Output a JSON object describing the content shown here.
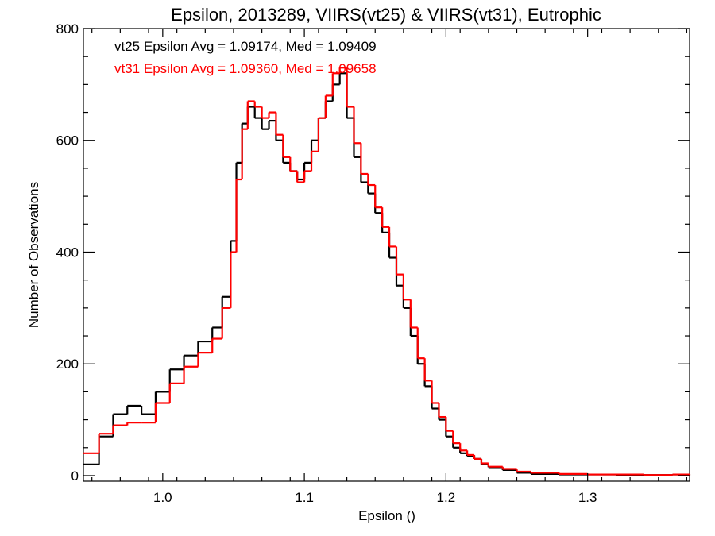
{
  "chart_data": {
    "type": "line",
    "title": "Epsilon, 2013289, VIIRS(vt25) & VIIRS(vt31), Eutrophic",
    "xlabel": "Epsilon ()",
    "ylabel": "Number of Observations",
    "xlim": [
      0.944,
      1.372
    ],
    "ylim": [
      -10,
      800
    ],
    "xticks": [
      1.0,
      1.1,
      1.2,
      1.3
    ],
    "xtick_labels": [
      "1.0",
      "1.1",
      "1.2",
      "1.3"
    ],
    "yticks": [
      0,
      200,
      400,
      600,
      800
    ],
    "ytick_labels": [
      "0",
      "200",
      "400",
      "600",
      "800"
    ],
    "grid": false,
    "legend_placement": "top-left",
    "annotations": [
      {
        "text": "vt25 Epsilon Avg = 1.09174, Med = 1.09409",
        "color": "#000000"
      },
      {
        "text": "vt31 Epsilon Avg = 1.09360, Med = 1.09658",
        "color": "#ff0000"
      }
    ],
    "series": [
      {
        "color": "#000000",
        "x": [
          0.944,
          0.955,
          0.965,
          0.975,
          0.985,
          0.995,
          1.005,
          1.015,
          1.025,
          1.035,
          1.042,
          1.048,
          1.052,
          1.056,
          1.06,
          1.065,
          1.07,
          1.075,
          1.08,
          1.085,
          1.09,
          1.095,
          1.1,
          1.105,
          1.11,
          1.115,
          1.12,
          1.125,
          1.13,
          1.135,
          1.14,
          1.145,
          1.15,
          1.155,
          1.16,
          1.165,
          1.17,
          1.175,
          1.18,
          1.185,
          1.19,
          1.195,
          1.2,
          1.205,
          1.21,
          1.215,
          1.22,
          1.225,
          1.23,
          1.24,
          1.25,
          1.26,
          1.28,
          1.3,
          1.32,
          1.34,
          1.36,
          1.372
        ],
        "values": [
          20,
          70,
          110,
          125,
          110,
          150,
          190,
          215,
          240,
          265,
          320,
          420,
          560,
          630,
          660,
          640,
          620,
          635,
          600,
          560,
          545,
          530,
          560,
          600,
          640,
          670,
          700,
          720,
          640,
          570,
          525,
          505,
          470,
          435,
          390,
          340,
          300,
          250,
          200,
          160,
          120,
          100,
          70,
          50,
          40,
          35,
          30,
          20,
          15,
          10,
          5,
          3,
          2,
          2,
          1,
          1,
          2,
          1
        ]
      },
      {
        "color": "#ff0000",
        "x": [
          0.944,
          0.955,
          0.965,
          0.975,
          0.985,
          0.995,
          1.005,
          1.015,
          1.025,
          1.035,
          1.042,
          1.048,
          1.052,
          1.056,
          1.06,
          1.065,
          1.07,
          1.075,
          1.08,
          1.085,
          1.09,
          1.095,
          1.1,
          1.105,
          1.11,
          1.115,
          1.12,
          1.125,
          1.13,
          1.135,
          1.14,
          1.145,
          1.15,
          1.155,
          1.16,
          1.165,
          1.17,
          1.175,
          1.18,
          1.185,
          1.19,
          1.195,
          1.2,
          1.205,
          1.21,
          1.215,
          1.22,
          1.225,
          1.23,
          1.24,
          1.25,
          1.26,
          1.28,
          1.3,
          1.32,
          1.34,
          1.36,
          1.372
        ],
        "values": [
          40,
          75,
          90,
          95,
          95,
          130,
          165,
          195,
          220,
          245,
          300,
          400,
          530,
          620,
          670,
          660,
          640,
          650,
          610,
          570,
          545,
          525,
          545,
          580,
          640,
          680,
          720,
          730,
          660,
          595,
          540,
          520,
          480,
          445,
          410,
          360,
          315,
          265,
          210,
          170,
          130,
          105,
          80,
          58,
          45,
          37,
          30,
          22,
          16,
          12,
          7,
          5,
          3,
          2,
          2,
          1,
          2,
          1
        ]
      }
    ]
  }
}
